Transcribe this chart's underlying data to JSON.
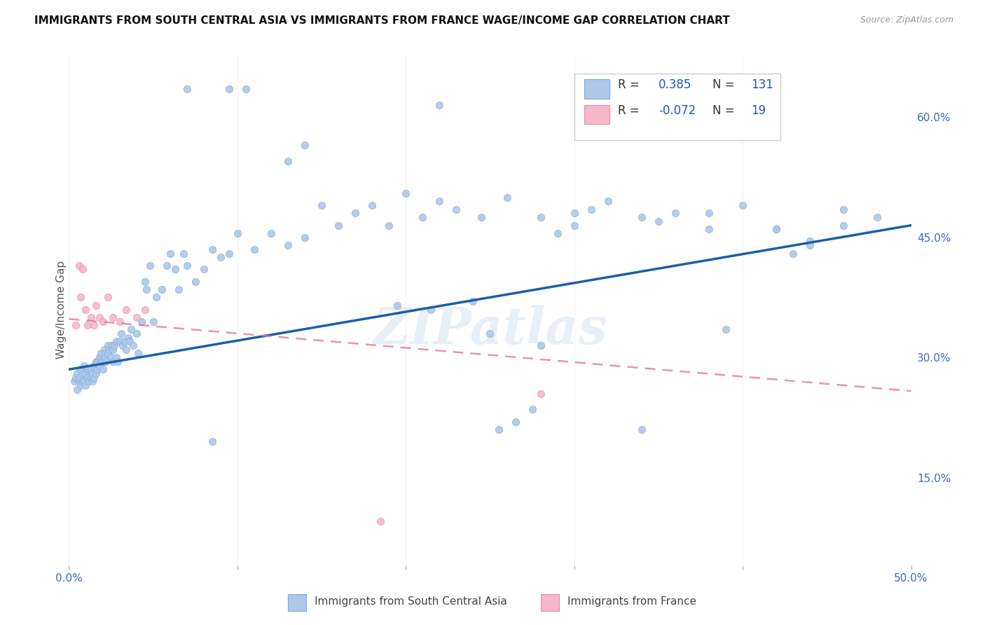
{
  "title": "IMMIGRANTS FROM SOUTH CENTRAL ASIA VS IMMIGRANTS FROM FRANCE WAGE/INCOME GAP CORRELATION CHART",
  "source": "Source: ZipAtlas.com",
  "ylabel": "Wage/Income Gap",
  "xlim": [
    0.0,
    0.5
  ],
  "ylim": [
    0.04,
    0.68
  ],
  "xticks": [
    0.0,
    0.1,
    0.2,
    0.3,
    0.4,
    0.5
  ],
  "xticklabels": [
    "0.0%",
    "",
    "",
    "",
    "",
    "50.0%"
  ],
  "yticks_right": [
    0.15,
    0.3,
    0.45,
    0.6
  ],
  "ytick_labels_right": [
    "15.0%",
    "30.0%",
    "45.0%",
    "60.0%"
  ],
  "r_blue": "0.385",
  "n_blue": "131",
  "r_pink": "-0.072",
  "n_pink": "19",
  "blue_color": "#adc8e8",
  "blue_edge_color": "#82acd4",
  "blue_line_color": "#1a5fa8",
  "pink_color": "#f5b8c8",
  "pink_edge_color": "#e090a8",
  "pink_line_color": "#e07090",
  "watermark": "ZIPatlas",
  "blue_line_x0": 0.0,
  "blue_line_x1": 0.5,
  "blue_line_y0": 0.285,
  "blue_line_y1": 0.465,
  "pink_line_x0": 0.0,
  "pink_line_x1": 0.5,
  "pink_line_y0": 0.348,
  "pink_line_y1": 0.258,
  "blue_scatter_x": [
    0.003,
    0.004,
    0.005,
    0.005,
    0.006,
    0.006,
    0.007,
    0.007,
    0.008,
    0.008,
    0.009,
    0.009,
    0.01,
    0.01,
    0.011,
    0.011,
    0.012,
    0.012,
    0.013,
    0.013,
    0.014,
    0.014,
    0.015,
    0.015,
    0.016,
    0.016,
    0.017,
    0.017,
    0.018,
    0.018,
    0.019,
    0.019,
    0.02,
    0.02,
    0.021,
    0.021,
    0.022,
    0.022,
    0.023,
    0.023,
    0.024,
    0.025,
    0.025,
    0.026,
    0.026,
    0.027,
    0.028,
    0.028,
    0.029,
    0.03,
    0.031,
    0.032,
    0.033,
    0.034,
    0.035,
    0.036,
    0.037,
    0.038,
    0.04,
    0.041,
    0.043,
    0.045,
    0.046,
    0.048,
    0.05,
    0.052,
    0.055,
    0.058,
    0.06,
    0.063,
    0.065,
    0.068,
    0.07,
    0.075,
    0.08,
    0.085,
    0.09,
    0.095,
    0.1,
    0.11,
    0.12,
    0.13,
    0.14,
    0.15,
    0.16,
    0.17,
    0.18,
    0.19,
    0.2,
    0.21,
    0.22,
    0.23,
    0.245,
    0.26,
    0.28,
    0.3,
    0.32,
    0.34,
    0.36,
    0.38,
    0.4,
    0.42,
    0.44,
    0.46,
    0.48,
    0.13,
    0.22,
    0.28,
    0.34,
    0.42,
    0.3,
    0.38,
    0.44,
    0.39,
    0.35,
    0.43,
    0.46,
    0.29,
    0.31,
    0.25,
    0.255,
    0.265,
    0.275,
    0.24,
    0.215,
    0.195,
    0.085,
    0.14,
    0.105,
    0.095,
    0.07
  ],
  "blue_scatter_y": [
    0.27,
    0.275,
    0.26,
    0.28,
    0.27,
    0.275,
    0.265,
    0.285,
    0.27,
    0.28,
    0.27,
    0.29,
    0.265,
    0.28,
    0.275,
    0.285,
    0.27,
    0.285,
    0.275,
    0.285,
    0.27,
    0.28,
    0.275,
    0.29,
    0.28,
    0.295,
    0.285,
    0.295,
    0.29,
    0.3,
    0.295,
    0.305,
    0.285,
    0.295,
    0.3,
    0.31,
    0.295,
    0.305,
    0.305,
    0.315,
    0.31,
    0.3,
    0.315,
    0.295,
    0.31,
    0.315,
    0.32,
    0.3,
    0.295,
    0.32,
    0.33,
    0.315,
    0.32,
    0.31,
    0.325,
    0.32,
    0.335,
    0.315,
    0.33,
    0.305,
    0.345,
    0.395,
    0.385,
    0.415,
    0.345,
    0.375,
    0.385,
    0.415,
    0.43,
    0.41,
    0.385,
    0.43,
    0.415,
    0.395,
    0.41,
    0.435,
    0.425,
    0.43,
    0.455,
    0.435,
    0.455,
    0.44,
    0.45,
    0.49,
    0.465,
    0.48,
    0.49,
    0.465,
    0.505,
    0.475,
    0.495,
    0.485,
    0.475,
    0.5,
    0.475,
    0.48,
    0.495,
    0.475,
    0.48,
    0.46,
    0.49,
    0.46,
    0.445,
    0.465,
    0.475,
    0.545,
    0.615,
    0.315,
    0.21,
    0.46,
    0.465,
    0.48,
    0.44,
    0.335,
    0.47,
    0.43,
    0.485,
    0.455,
    0.485,
    0.33,
    0.21,
    0.22,
    0.235,
    0.37,
    0.36,
    0.365,
    0.195,
    0.565,
    0.635,
    0.635,
    0.635
  ],
  "pink_scatter_x": [
    0.004,
    0.006,
    0.007,
    0.008,
    0.01,
    0.011,
    0.013,
    0.015,
    0.016,
    0.018,
    0.02,
    0.023,
    0.026,
    0.03,
    0.034,
    0.04,
    0.045,
    0.185,
    0.28
  ],
  "pink_scatter_y": [
    0.34,
    0.415,
    0.375,
    0.41,
    0.36,
    0.34,
    0.35,
    0.34,
    0.365,
    0.35,
    0.345,
    0.375,
    0.35,
    0.345,
    0.36,
    0.35,
    0.36,
    0.095,
    0.255
  ]
}
